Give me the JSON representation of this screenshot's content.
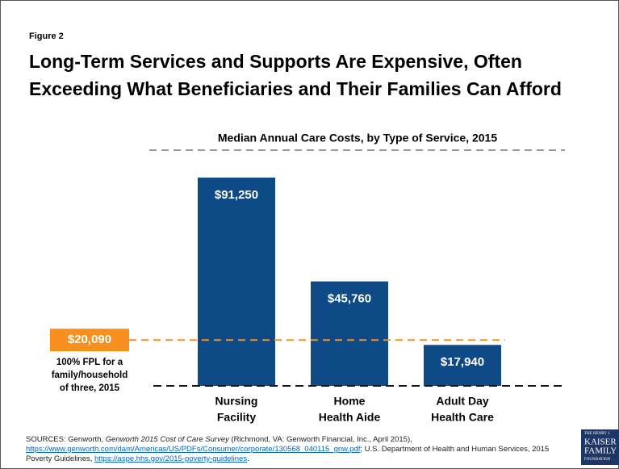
{
  "figure_label": "Figure 2",
  "title_lines": [
    "Long-Term Services and Supports Are Expensive, Often",
    "Exceeding What Beneficiaries and Their Families Can Afford"
  ],
  "chart_data": {
    "type": "bar",
    "title": "Median Annual Care Costs, by Type of Service, 2015",
    "categories": [
      [
        "Nursing",
        "Facility"
      ],
      [
        "Home",
        "Health Aide"
      ],
      [
        "Adult Day",
        "Health Care"
      ]
    ],
    "values": [
      91250,
      45760,
      17940
    ],
    "value_labels": [
      "$91,250",
      "$45,760",
      "$17,940"
    ],
    "color": "#0e4a85",
    "reference": {
      "value": 20090,
      "label": "$20,090",
      "color": "#f7901e",
      "text": [
        "100% FPL for a",
        "family/household",
        "of three, 2015"
      ]
    }
  },
  "sources": [
    {
      "text": "SOURCES: Genworth, "
    },
    {
      "text": "Genworth 2015 Cost of Care Survey",
      "style": "italic"
    },
    {
      "text": " (Richmond, VA: Genworth Financial, Inc., April 2015), "
    },
    {
      "text": "https://www.genworth.com/dam/Americas/US/PDFs/Consumer/corporate/130568_040115_gnw.pdf",
      "style": "link"
    },
    {
      "text": "; U.S. Department of Health and Human Services, 2015 Poverty Guidelines, "
    },
    {
      "text": "https://aspe.hhs.gov/2015-poverty-guidelines",
      "style": "link"
    },
    {
      "text": "."
    }
  ],
  "logo": [
    "THE HENRY J.",
    "KAISER",
    "FAMILY",
    "FOUNDATION"
  ]
}
